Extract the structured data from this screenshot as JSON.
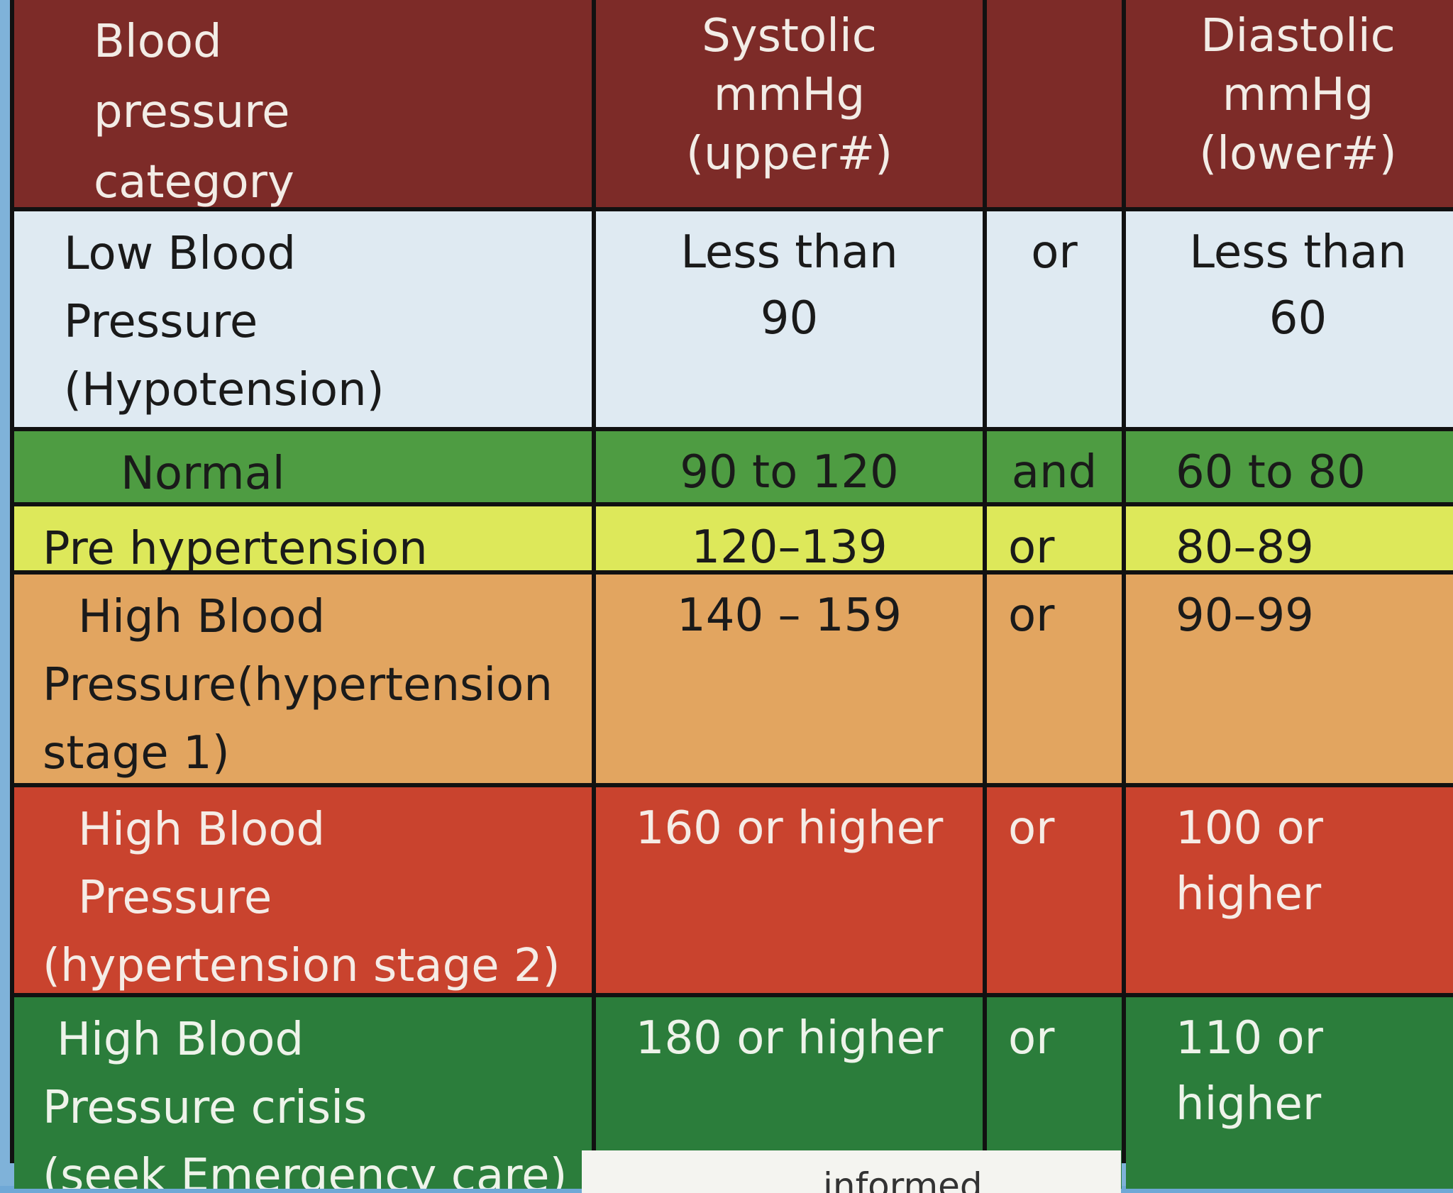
{
  "header": {
    "category": [
      "Blood",
      "pressure",
      "category"
    ],
    "systolic": [
      "Systolic",
      "mmHg",
      "(upper#)"
    ],
    "conjunction": "",
    "diastolic": [
      "Diastolic",
      "mmHg",
      "(lower#)"
    ]
  },
  "rows": [
    {
      "category": [
        "Low Blood",
        "Pressure",
        "(Hypotension)"
      ],
      "systolic": [
        "Less than",
        "90"
      ],
      "conjunction": "or",
      "diastolic": [
        "Less than",
        "60"
      ],
      "color": "#dfeaf2"
    },
    {
      "category": [
        "Normal"
      ],
      "systolic": [
        "90 to 120"
      ],
      "conjunction": "and",
      "diastolic": [
        "60 to 80"
      ],
      "color": "#4e9c42"
    },
    {
      "category": [
        "Pre hypertension"
      ],
      "systolic": [
        "120–139"
      ],
      "conjunction": "or",
      "diastolic": [
        "80–89"
      ],
      "color": "#dde85a"
    },
    {
      "category": [
        "High Blood",
        "Pressure(hypertension",
        "stage 1)"
      ],
      "systolic": [
        "140 – 159"
      ],
      "conjunction": "or",
      "diastolic": [
        "90–99"
      ],
      "color": "#e2a560"
    },
    {
      "category": [
        "High Blood",
        "Pressure",
        "(hypertension stage 2)"
      ],
      "systolic": [
        "160 or higher"
      ],
      "conjunction": "or",
      "diastolic": [
        "100 or higher"
      ],
      "color": "#c9432e"
    },
    {
      "category": [
        "High Blood",
        "Pressure crisis",
        "(seek Emergency care)"
      ],
      "systolic": [
        "180 or higher"
      ],
      "conjunction": "or",
      "diastolic": [
        "110 or higher"
      ],
      "color": "#2b7d3b"
    }
  ],
  "footer": {
    "partial_text": "informed"
  }
}
